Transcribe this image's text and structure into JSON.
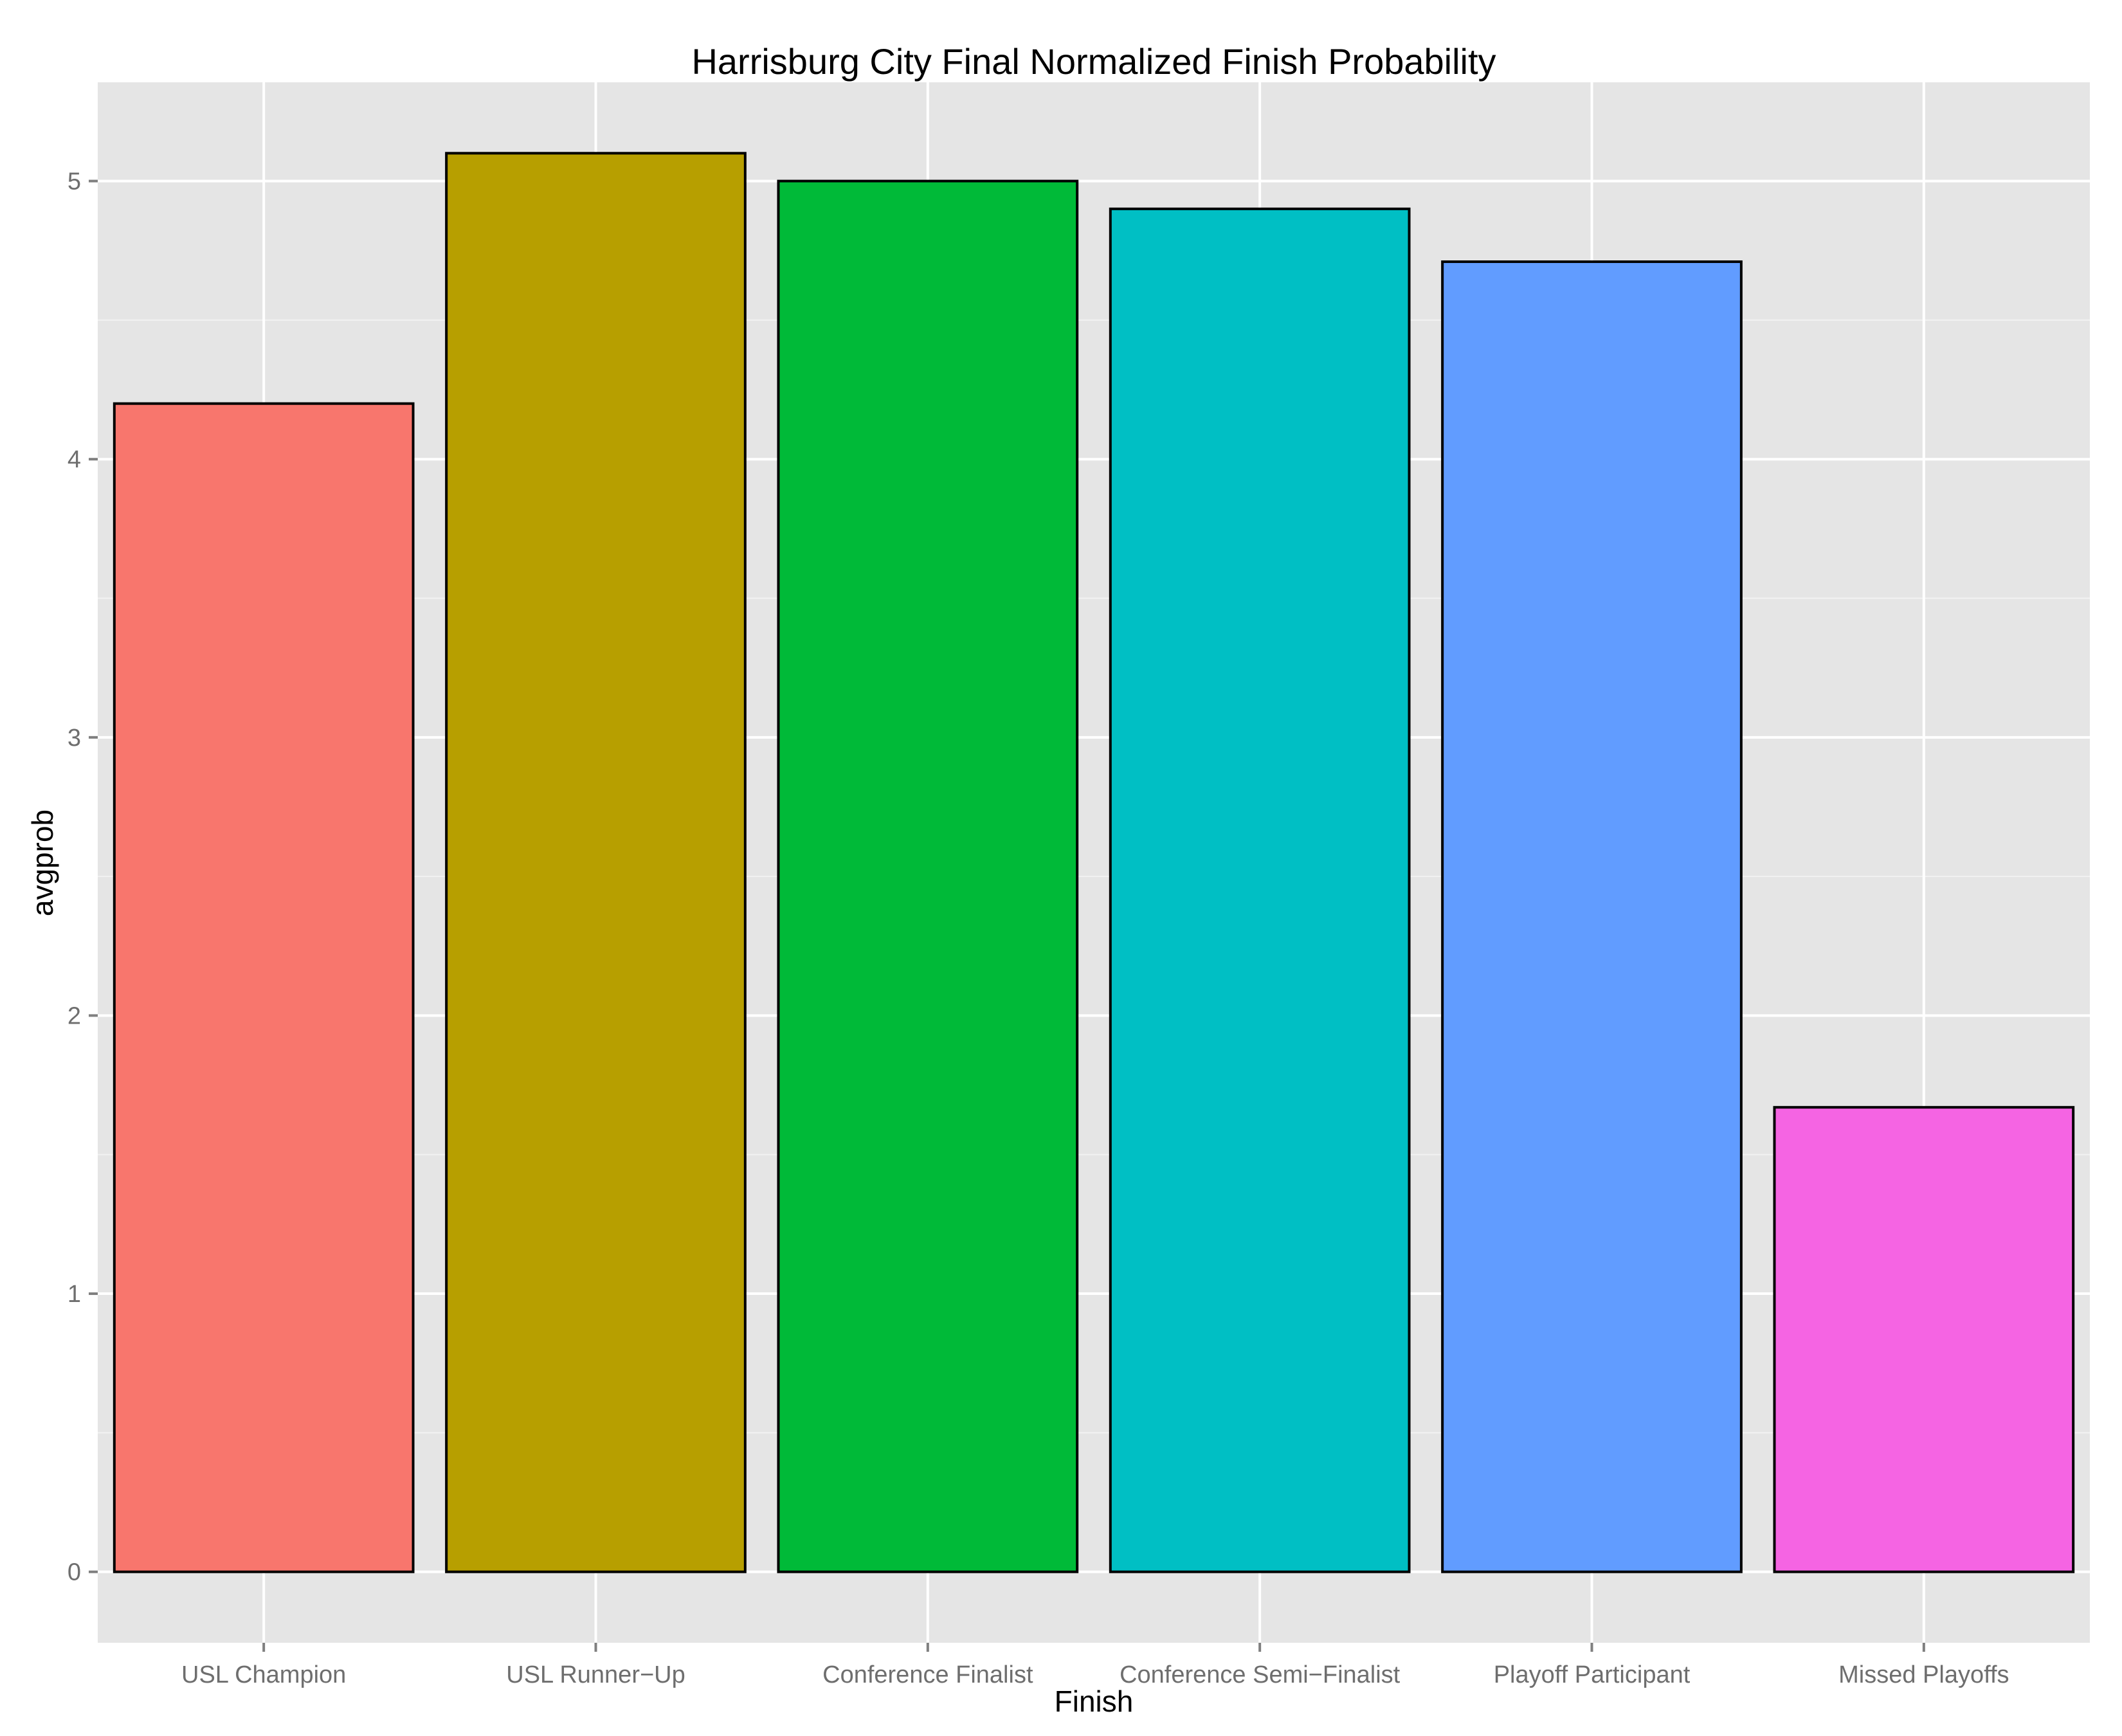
{
  "chart_data": {
    "type": "bar",
    "title": "Harrisburg City Final Normalized Finish Probability",
    "xlabel": "Finish",
    "ylabel": "avgprob",
    "categories": [
      "USL Champion",
      "USL Runner−Up",
      "Conference Finalist",
      "Conference Semi−Finalist",
      "Playoff Participant",
      "Missed Playoffs"
    ],
    "values": [
      4.2,
      5.1,
      5.0,
      4.9,
      4.71,
      1.67
    ],
    "colors": [
      "#F8766D",
      "#B79F00",
      "#00BA38",
      "#00BFC4",
      "#619CFF",
      "#F564E3"
    ],
    "bar_outline_color": "#000000",
    "panel_background": "#E5E5E5",
    "grid_color": "#FFFFFF",
    "ylim": [
      -0.255,
      5.355
    ],
    "yticks": [
      0,
      1,
      2,
      3,
      4,
      5
    ],
    "ytick_labels": [
      "0",
      "1",
      "2",
      "3",
      "4",
      "5"
    ],
    "grid": true,
    "legend": "none"
  }
}
